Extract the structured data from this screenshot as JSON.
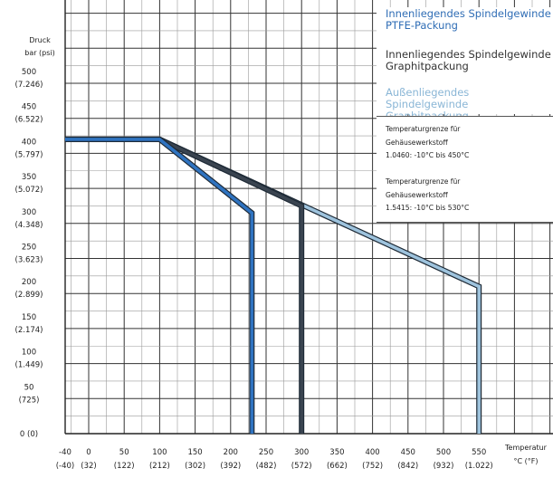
{
  "chart_data": {
    "type": "line",
    "ylabel": [
      "Druck",
      "bar (psi)"
    ],
    "xlabel": [
      "Temperatur",
      "°C (°F)"
    ],
    "xlim": [
      -40,
      550
    ],
    "ylim": [
      0,
      500
    ],
    "x_ticks": [
      {
        "c": "-40",
        "f": "(-40)"
      },
      {
        "c": "0",
        "f": "(32)"
      },
      {
        "c": "50",
        "f": "(122)"
      },
      {
        "c": "100",
        "f": "(212)"
      },
      {
        "c": "150",
        "f": "(302)"
      },
      {
        "c": "200",
        "f": "(392)"
      },
      {
        "c": "250",
        "f": "(482)"
      },
      {
        "c": "300",
        "f": "(572)"
      },
      {
        "c": "350",
        "f": "(662)"
      },
      {
        "c": "400",
        "f": "(752)"
      },
      {
        "c": "450",
        "f": "(842)"
      },
      {
        "c": "500",
        "f": "(932)"
      },
      {
        "c": "550",
        "f": "(1.022)"
      }
    ],
    "y_ticks": [
      {
        "bar": "0 (0)",
        "psi": ""
      },
      {
        "bar": "50",
        "psi": "(725)"
      },
      {
        "bar": "100",
        "psi": "(1.449)"
      },
      {
        "bar": "150",
        "psi": "(2.174)"
      },
      {
        "bar": "200",
        "psi": "(2.899)"
      },
      {
        "bar": "250",
        "psi": "(3.623)"
      },
      {
        "bar": "300",
        "psi": "(4.348)"
      },
      {
        "bar": "350",
        "psi": "(5.072)"
      },
      {
        "bar": "400",
        "psi": "(5.797)"
      },
      {
        "bar": "450",
        "psi": "(6.522)"
      },
      {
        "bar": "500",
        "psi": "(7.246)"
      }
    ],
    "grid": true,
    "series": [
      {
        "name": "Außenliegendes Spindelgewinde Graphitpackung",
        "color": "#9ec3dd",
        "x": [
          -40,
          100,
          550,
          550
        ],
        "y": [
          420,
          420,
          210,
          0
        ]
      },
      {
        "name": "Innenliegendes Spindelgewinde Graphitpackung",
        "color": "#3a4450",
        "x": [
          -40,
          100,
          300,
          300
        ],
        "y": [
          420,
          420,
          325,
          0
        ]
      },
      {
        "name": "Innenliegendes Spindelgewinde PTFE-Packung",
        "color": "#2f73c0",
        "x": [
          -40,
          100,
          230,
          230
        ],
        "y": [
          420,
          420,
          315,
          0
        ]
      }
    ]
  },
  "legend": [
    {
      "line1": "Innenliegendes Spindelgewinde",
      "line2": "PTFE-Packung",
      "color": "#2f6db5"
    },
    {
      "line1": "Innenliegendes Spindelgewinde",
      "line2": "Graphitpackung",
      "color": "#333333"
    },
    {
      "line1": "Außenliegendes Spindelgewinde",
      "line2": "Graphitpackung",
      "color": "#8ab6d6"
    }
  ],
  "notes": [
    {
      "line1": "Temperaturgrenze für",
      "line2": "Gehäusewerkstoff",
      "line3": "1.0460: -10°C bis 450°C"
    },
    {
      "line1": "Temperaturgrenze für",
      "line2": "Gehäusewerkstoff",
      "line3": "1.5415: -10°C bis 530°C"
    }
  ]
}
